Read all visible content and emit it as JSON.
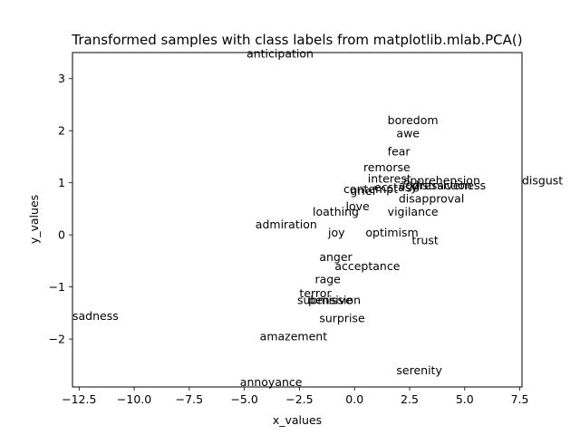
{
  "chart_data": {
    "type": "scatter",
    "title": "Transformed samples with class labels from matplotlib.mlab.PCA()",
    "xlabel": "x_values",
    "ylabel": "y_values",
    "xlim": [
      -12.8,
      7.6
    ],
    "ylim": [
      -2.92,
      3.5
    ],
    "xticks": [
      -12.5,
      -10.0,
      -7.5,
      -5.0,
      -2.5,
      0.0,
      2.5,
      5.0,
      7.5
    ],
    "xtick_labels": [
      "−12.5",
      "−10.0",
      "−7.5",
      "−5.0",
      "−2.5",
      "0.0",
      "2.5",
      "5.0",
      "7.5"
    ],
    "yticks": [
      -2,
      -1,
      0,
      1,
      2,
      3
    ],
    "ytick_labels": [
      "−2",
      "−1",
      "0",
      "1",
      "2",
      "3"
    ],
    "grid": false,
    "points": [
      {
        "label": "anticipation",
        "x": -4.9,
        "y": 3.48
      },
      {
        "label": "boredom",
        "x": 1.5,
        "y": 2.2
      },
      {
        "label": "awe",
        "x": 1.9,
        "y": 1.95
      },
      {
        "label": "fear",
        "x": 1.5,
        "y": 1.6
      },
      {
        "label": "remorse",
        "x": 0.4,
        "y": 1.3
      },
      {
        "label": "interest",
        "x": 0.6,
        "y": 1.08
      },
      {
        "label": "apprehension",
        "x": 2.2,
        "y": 1.05
      },
      {
        "label": "disgust",
        "x": 7.6,
        "y": 1.05
      },
      {
        "label": "aggressiveness",
        "x": 2.0,
        "y": 0.95
      },
      {
        "label": "distraction",
        "x": 2.6,
        "y": 0.95
      },
      {
        "label": "ecstasy",
        "x": 0.9,
        "y": 0.92
      },
      {
        "label": "contempt",
        "x": -0.5,
        "y": 0.88
      },
      {
        "label": "grief",
        "x": -0.2,
        "y": 0.85
      },
      {
        "label": "optimism2",
        "x": 0.8,
        "y": 0.87
      },
      {
        "label": "disapproval",
        "x": 2.0,
        "y": 0.7
      },
      {
        "label": "love",
        "x": -0.4,
        "y": 0.55
      },
      {
        "label": "loathing",
        "x": -1.9,
        "y": 0.45
      },
      {
        "label": "vigilance",
        "x": 1.5,
        "y": 0.45
      },
      {
        "label": "admiration",
        "x": -4.5,
        "y": 0.2
      },
      {
        "label": "joy",
        "x": -1.2,
        "y": 0.05
      },
      {
        "label": "optimism",
        "x": 0.5,
        "y": 0.05
      },
      {
        "label": "trust",
        "x": 2.6,
        "y": -0.1
      },
      {
        "label": "anger",
        "x": -1.6,
        "y": -0.42
      },
      {
        "label": "acceptance",
        "x": -0.9,
        "y": -0.6
      },
      {
        "label": "rage",
        "x": -1.8,
        "y": -0.85
      },
      {
        "label": "terror",
        "x": -2.5,
        "y": -1.12
      },
      {
        "label": "submission",
        "x": -2.6,
        "y": -1.25
      },
      {
        "label": "pensive",
        "x": -2.1,
        "y": -1.25
      },
      {
        "label": "sadness",
        "x": -12.8,
        "y": -1.55
      },
      {
        "label": "surprise",
        "x": -1.6,
        "y": -1.6
      },
      {
        "label": "amazement",
        "x": -4.3,
        "y": -1.95
      },
      {
        "label": "serenity",
        "x": 1.9,
        "y": -2.6
      },
      {
        "label": "annoyance",
        "x": -5.2,
        "y": -2.82
      }
    ]
  }
}
